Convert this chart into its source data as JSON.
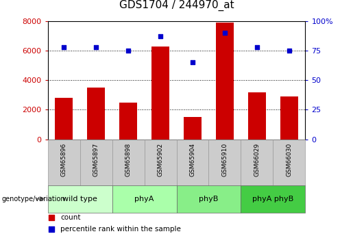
{
  "title": "GDS1704 / 244970_at",
  "samples": [
    "GSM65896",
    "GSM65897",
    "GSM65898",
    "GSM65902",
    "GSM65904",
    "GSM65910",
    "GSM66029",
    "GSM66030"
  ],
  "counts": [
    2800,
    3500,
    2500,
    6300,
    1500,
    7900,
    3200,
    2900
  ],
  "percentile_ranks": [
    78,
    78,
    75,
    87,
    65,
    90,
    78,
    75
  ],
  "groups": [
    {
      "label": "wild type",
      "start": 0,
      "end": 2,
      "color": "#ccffcc"
    },
    {
      "label": "phyA",
      "start": 2,
      "end": 4,
      "color": "#aaffaa"
    },
    {
      "label": "phyB",
      "start": 4,
      "end": 6,
      "color": "#88ee88"
    },
    {
      "label": "phyA phyB",
      "start": 6,
      "end": 8,
      "color": "#44cc44"
    }
  ],
  "bar_color": "#cc0000",
  "dot_color": "#0000cc",
  "left_ylim": [
    0,
    8000
  ],
  "left_yticks": [
    0,
    2000,
    4000,
    6000,
    8000
  ],
  "right_ylim": [
    0,
    100
  ],
  "right_yticks": [
    0,
    25,
    50,
    75,
    100
  ],
  "title_fontsize": 11,
  "tick_label_fontsize": 8,
  "bar_width": 0.55,
  "bar_color_red": "#cc0000",
  "dot_color_blue": "#0000cc",
  "grid_color": "black",
  "sample_box_color": "#cccccc",
  "sample_box_edge": "#999999"
}
